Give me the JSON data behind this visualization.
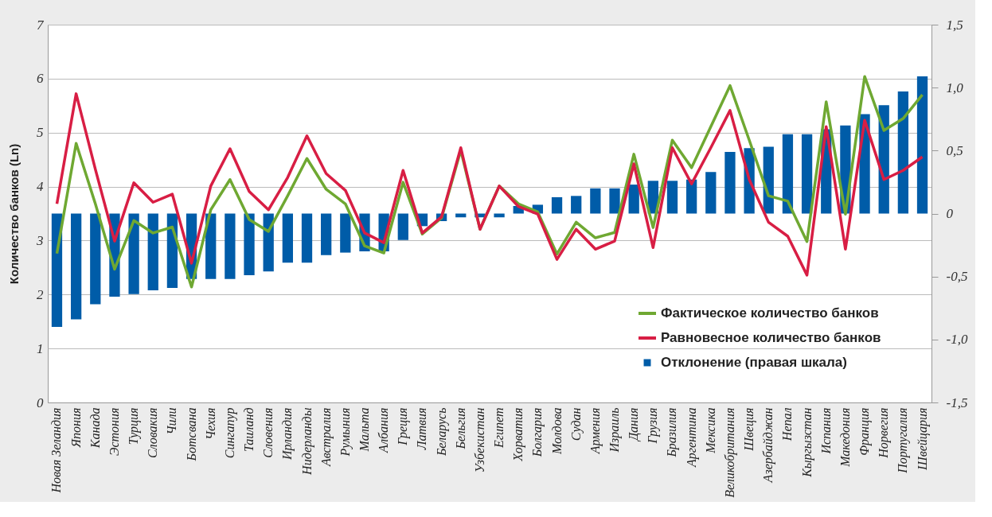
{
  "chart_data": {
    "type": "line",
    "ylabel": "Количество банков (Ln)",
    "categories": [
      "Новая Зеландия",
      "Япония",
      "Канада",
      "Эстония",
      "Турция",
      "Словакия",
      "Чили",
      "Ботсвана",
      "Чехия",
      "Сингапур",
      "Таиланд",
      "Словения",
      "Ирландия",
      "Нидерланды",
      "Австралия",
      "Румыния",
      "Мальта",
      "Албания",
      "Греция",
      "Латвия",
      "Беларусь",
      "Бельгия",
      "Узбекистан",
      "Египет",
      "Хорватия",
      "Болгария",
      "Молдова",
      "Судан",
      "Армения",
      "Израиль",
      "Дания",
      "Грузия",
      "Бразилия",
      "Аргентина",
      "Мексика",
      "Великобритания",
      "Швеция",
      "Азербайджан",
      "Непал",
      "Кыргызстан",
      "Испания",
      "Македония",
      "Франция",
      "Норвегия",
      "Португалия",
      "Швейцария"
    ],
    "series": [
      {
        "name": "Фактическое количество банков",
        "color": "#6fa832",
        "values": [
          2.76,
          4.8,
          3.68,
          2.47,
          3.37,
          3.14,
          3.25,
          2.14,
          3.57,
          4.13,
          3.39,
          3.17,
          3.83,
          4.52,
          3.95,
          3.68,
          2.9,
          2.77,
          4.08,
          3.12,
          3.42,
          4.67,
          3.21,
          4.01,
          3.68,
          3.53,
          2.75,
          3.34,
          3.05,
          3.15,
          4.6,
          3.24,
          4.86,
          4.35,
          5.11,
          5.87,
          4.86,
          3.83,
          3.73,
          2.98,
          5.57,
          3.49,
          6.04,
          5.04,
          5.26,
          5.7
        ]
      },
      {
        "name": "Равновесное количество банков",
        "color": "#d81e44",
        "values": [
          3.68,
          5.72,
          4.32,
          2.99,
          4.07,
          3.71,
          3.86,
          2.58,
          4.01,
          4.7,
          3.91,
          3.57,
          4.17,
          4.94,
          4.24,
          3.93,
          3.14,
          2.96,
          4.3,
          3.14,
          3.44,
          4.72,
          3.21,
          4.01,
          3.63,
          3.49,
          2.65,
          3.21,
          2.84,
          2.99,
          4.42,
          2.87,
          4.72,
          4.05,
          4.72,
          5.41,
          4.13,
          3.34,
          3.08,
          2.36,
          5.11,
          2.84,
          5.23,
          4.13,
          4.3,
          4.55
        ]
      },
      {
        "name": "Отклонение (правая шкала)",
        "type": "bar",
        "axis": "y2",
        "color": "#005ca8",
        "values": [
          -0.9,
          -0.84,
          -0.72,
          -0.66,
          -0.64,
          -0.61,
          -0.59,
          -0.52,
          -0.52,
          -0.52,
          -0.49,
          -0.46,
          -0.39,
          -0.39,
          -0.33,
          -0.31,
          -0.3,
          -0.3,
          -0.21,
          -0.1,
          -0.06,
          -0.03,
          -0.03,
          -0.03,
          0.06,
          0.07,
          0.13,
          0.14,
          0.2,
          0.2,
          0.23,
          0.26,
          0.26,
          0.27,
          0.33,
          0.49,
          0.52,
          0.53,
          0.63,
          0.63,
          0.67,
          0.7,
          0.79,
          0.86,
          0.97,
          1.09
        ]
      }
    ],
    "ylim": [
      0,
      7
    ],
    "yticks": [
      0,
      1,
      2,
      3,
      4,
      5,
      6,
      7
    ],
    "y2lim": [
      -1.5,
      1.5
    ],
    "y2ticks": [
      {
        "value": -1.5,
        "label": "-1,5"
      },
      {
        "value": -1.0,
        "label": "-1,0"
      },
      {
        "value": -0.5,
        "label": "-0,5"
      },
      0,
      {
        "value": 0.5,
        "label": "0,5"
      },
      {
        "value": 1.0,
        "label": "1,0"
      },
      {
        "value": 1.5,
        "label": "1,5"
      }
    ],
    "grid": "y",
    "legend": "bottom right"
  }
}
